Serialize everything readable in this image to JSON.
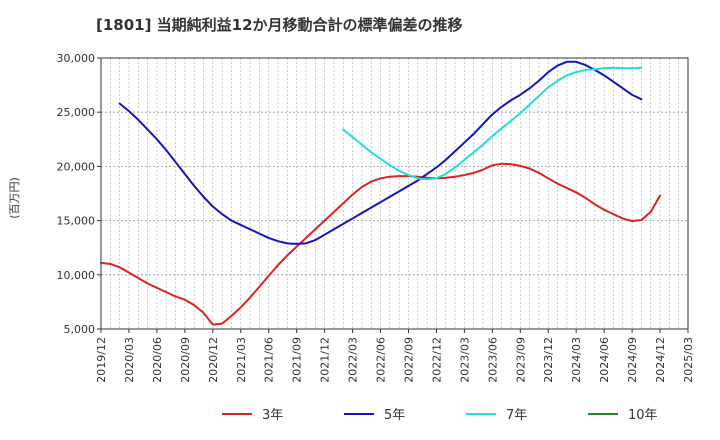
{
  "chart_data": {
    "type": "line",
    "title": "[1801]  当期純利益12か月移動合計の標準偏差の推移",
    "ylabel": "(百万円)",
    "xlabel": "",
    "ylim": [
      5000,
      30000
    ],
    "y_ticks": [
      5000,
      10000,
      15000,
      20000,
      25000,
      30000
    ],
    "y_tick_labels": [
      "5,000",
      "10,000",
      "15,000",
      "20,000",
      "25,000",
      "30,000"
    ],
    "x_tick_labels": [
      "2019/12",
      "2020/03",
      "2020/06",
      "2020/09",
      "2020/12",
      "2021/03",
      "2021/06",
      "2021/09",
      "2021/12",
      "2022/03",
      "2022/06",
      "2022/09",
      "2022/12",
      "2023/03",
      "2023/06",
      "2023/09",
      "2023/12",
      "2024/03",
      "2024/06",
      "2024/09",
      "2024/12",
      "2025/03"
    ],
    "x_start": "2019/12",
    "grid": true,
    "legend_position": "bottom",
    "series": [
      {
        "name": "3年",
        "color": "#dd2222",
        "start": "2019/12",
        "values": [
          11100,
          11000,
          10700,
          10200,
          9700,
          9200,
          8800,
          8400,
          8000,
          7700,
          7200,
          6500,
          5400,
          5500,
          6200,
          7000,
          7900,
          8900,
          9900,
          10900,
          11800,
          12600,
          13400,
          14200,
          15000,
          15800,
          16600,
          17400,
          18100,
          18600,
          18900,
          19050,
          19100,
          19100,
          19050,
          18950,
          18900,
          18950,
          19050,
          19200,
          19400,
          19700,
          20100,
          20250,
          20200,
          20050,
          19800,
          19400,
          18900,
          18400,
          18000,
          17600,
          17100,
          16500,
          16000,
          15600,
          15200,
          14950,
          15050,
          15800,
          17300
        ]
      },
      {
        "name": "5年",
        "color": "#1515bb",
        "start": "2020/02",
        "values": [
          25800,
          25100,
          24300,
          23400,
          22500,
          21500,
          20400,
          19300,
          18200,
          17200,
          16300,
          15600,
          15000,
          14600,
          14200,
          13800,
          13400,
          13100,
          12900,
          12850,
          12900,
          13200,
          13700,
          14200,
          14700,
          15200,
          15700,
          16200,
          16700,
          17200,
          17700,
          18200,
          18700,
          19300,
          19900,
          20600,
          21400,
          22200,
          23000,
          23900,
          24800,
          25500,
          26100,
          26600,
          27200,
          27900,
          28700,
          29300,
          29650,
          29650,
          29350,
          28900,
          28400,
          27800,
          27200,
          26600,
          26200
        ]
      },
      {
        "name": "7年",
        "color": "#22dddd",
        "start": "2022/02",
        "values": [
          23400,
          22700,
          22000,
          21300,
          20700,
          20100,
          19600,
          19200,
          18900,
          18800,
          18900,
          19300,
          19900,
          20600,
          21300,
          22000,
          22800,
          23500,
          24200,
          24900,
          25700,
          26500,
          27300,
          27900,
          28400,
          28700,
          28900,
          28950,
          29050,
          29100,
          29050,
          29050,
          29100
        ]
      },
      {
        "name": "10年",
        "color": "#228822",
        "start": "2024/12",
        "values": []
      }
    ]
  }
}
